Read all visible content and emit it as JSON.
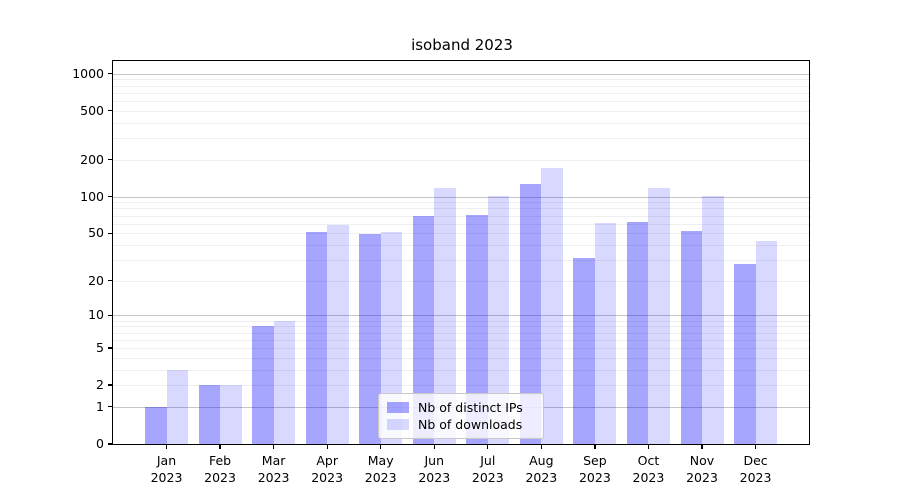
{
  "title": "isoband 2023",
  "legend": {
    "items": [
      {
        "label": "Nb of distinct IPs",
        "color": "rgba(0,0,255,0.35)"
      },
      {
        "label": "Nb of downloads",
        "color": "rgba(0,0,255,0.15)"
      }
    ],
    "position": "lower center"
  },
  "colors": {
    "bar_distinct_ips": "rgba(0,0,255,0.35)",
    "bar_downloads": "rgba(0,0,255,0.15)",
    "grid_major": "#c6c6c6",
    "grid_minor": "#efefef",
    "axis": "#000000",
    "background": "#ffffff"
  },
  "chart_data": {
    "type": "bar",
    "title": "isoband 2023",
    "xlabel": "",
    "ylabel": "",
    "yscale": "log1p",
    "ylim": [
      0,
      1300
    ],
    "grid": "horizontal major+minor",
    "legend_position": "lower center",
    "y_ticks": [
      0,
      1,
      2,
      5,
      10,
      20,
      50,
      100,
      200,
      500,
      1000
    ],
    "categories": [
      {
        "month": "Jan",
        "year": "2023"
      },
      {
        "month": "Feb",
        "year": "2023"
      },
      {
        "month": "Mar",
        "year": "2023"
      },
      {
        "month": "Apr",
        "year": "2023"
      },
      {
        "month": "May",
        "year": "2023"
      },
      {
        "month": "Jun",
        "year": "2023"
      },
      {
        "month": "Jul",
        "year": "2023"
      },
      {
        "month": "Aug",
        "year": "2023"
      },
      {
        "month": "Sep",
        "year": "2023"
      },
      {
        "month": "Oct",
        "year": "2023"
      },
      {
        "month": "Nov",
        "year": "2023"
      },
      {
        "month": "Dec",
        "year": "2023"
      }
    ],
    "series": [
      {
        "name": "Nb of distinct IPs",
        "color": "rgba(0,0,255,0.35)",
        "values": [
          1,
          2,
          8,
          51,
          49,
          69,
          71,
          127,
          31,
          62,
          52,
          28
        ]
      },
      {
        "name": "Nb of downloads",
        "color": "rgba(0,0,255,0.15)",
        "values": [
          3,
          2,
          9,
          59,
          51,
          118,
          102,
          170,
          61,
          118,
          102,
          43
        ]
      }
    ]
  }
}
